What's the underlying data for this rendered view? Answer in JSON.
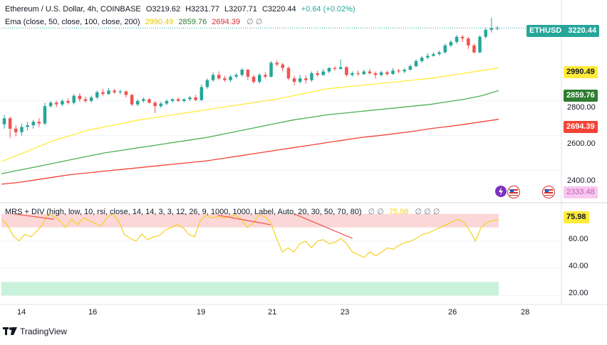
{
  "header": {
    "symbol_line": "Ethereum / U.S. Dollar, 4h, COINBASE",
    "ohlc": {
      "o": "O3219.62",
      "h": "H3231.77",
      "l": "L3207.71",
      "c": "C3220.44",
      "chg": "+0.64 (+0.02%)"
    },
    "ema_label": "Ema (close, 50, close, 100, close, 200)",
    "ema_values": [
      "2990.49",
      "2859.76",
      "2694.39"
    ],
    "ema_suffix": "∅ ∅"
  },
  "indicator": {
    "label": "MRS + DIV (high, low, 10, rsi, close, 14, 14, 3, 3, 12, 26, 9, 1000, 1000, Label, Auto, 20, 30, 50, 70, 80)",
    "prefix": "∅ ∅",
    "value": "75.98",
    "suffix": "∅ ∅ ∅",
    "current_label": "75.98",
    "axis_ticks": [
      "60.00",
      "40.00",
      "20.00"
    ]
  },
  "price_labels": {
    "ethusd_name": "ETHUSD",
    "ethusd_value": "3220.44",
    "ema50": "2990.49",
    "ema100": "2859.76",
    "ema200": "2694.39",
    "ghost": "2333.48"
  },
  "price_axis_ticks": [
    "2800.00",
    "2600.00",
    "2400.00"
  ],
  "time_axis_ticks": [
    "14",
    "16",
    "19",
    "21",
    "23",
    "26",
    "28"
  ],
  "branding": {
    "name": "TradingView"
  },
  "colors": {
    "up": "#26a69a",
    "down": "#ef5350",
    "ema50": "#ffeb3b",
    "ema100": "#4caf50",
    "ema200": "#f44336",
    "rsi": "#f5d020",
    "overbought_zone": "#fcd7d7",
    "oversold_zone": "#c9f2da",
    "ethusd_label": "#26a69a"
  },
  "chart_data": {
    "type": "candlestick",
    "timeframe": "4h",
    "x_ticks": [
      "14",
      "16",
      "19",
      "21",
      "23",
      "26",
      "28"
    ],
    "ylim": [
      2250,
      3300
    ],
    "y_ticks": [
      2400,
      2600,
      2800
    ],
    "candles": [
      {
        "o": 2665,
        "c": 2700,
        "h": 2720,
        "l": 2640
      },
      {
        "o": 2700,
        "c": 2640,
        "h": 2710,
        "l": 2585
      },
      {
        "o": 2640,
        "c": 2620,
        "h": 2660,
        "l": 2595
      },
      {
        "o": 2620,
        "c": 2650,
        "h": 2670,
        "l": 2600
      },
      {
        "o": 2650,
        "c": 2660,
        "h": 2680,
        "l": 2630
      },
      {
        "o": 2660,
        "c": 2680,
        "h": 2690,
        "l": 2640
      },
      {
        "o": 2680,
        "c": 2670,
        "h": 2700,
        "l": 2650
      },
      {
        "o": 2670,
        "c": 2770,
        "h": 2790,
        "l": 2660
      },
      {
        "o": 2770,
        "c": 2790,
        "h": 2800,
        "l": 2760
      },
      {
        "o": 2790,
        "c": 2780,
        "h": 2800,
        "l": 2765
      },
      {
        "o": 2780,
        "c": 2800,
        "h": 2810,
        "l": 2770
      },
      {
        "o": 2800,
        "c": 2790,
        "h": 2815,
        "l": 2780
      },
      {
        "o": 2790,
        "c": 2830,
        "h": 2840,
        "l": 2780
      },
      {
        "o": 2830,
        "c": 2810,
        "h": 2845,
        "l": 2795
      },
      {
        "o": 2810,
        "c": 2800,
        "h": 2825,
        "l": 2790
      },
      {
        "o": 2800,
        "c": 2820,
        "h": 2830,
        "l": 2790
      },
      {
        "o": 2820,
        "c": 2850,
        "h": 2860,
        "l": 2810
      },
      {
        "o": 2850,
        "c": 2840,
        "h": 2870,
        "l": 2830
      },
      {
        "o": 2840,
        "c": 2860,
        "h": 2875,
        "l": 2835
      },
      {
        "o": 2860,
        "c": 2850,
        "h": 2870,
        "l": 2840
      },
      {
        "o": 2850,
        "c": 2855,
        "h": 2865,
        "l": 2840
      },
      {
        "o": 2855,
        "c": 2835,
        "h": 2860,
        "l": 2820
      },
      {
        "o": 2835,
        "c": 2780,
        "h": 2840,
        "l": 2770
      },
      {
        "o": 2780,
        "c": 2800,
        "h": 2810,
        "l": 2770
      },
      {
        "o": 2800,
        "c": 2810,
        "h": 2820,
        "l": 2790
      },
      {
        "o": 2810,
        "c": 2790,
        "h": 2815,
        "l": 2785
      },
      {
        "o": 2790,
        "c": 2770,
        "h": 2800,
        "l": 2730
      },
      {
        "o": 2770,
        "c": 2785,
        "h": 2795,
        "l": 2760
      },
      {
        "o": 2785,
        "c": 2800,
        "h": 2810,
        "l": 2775
      },
      {
        "o": 2800,
        "c": 2810,
        "h": 2815,
        "l": 2790
      },
      {
        "o": 2810,
        "c": 2800,
        "h": 2820,
        "l": 2795
      },
      {
        "o": 2800,
        "c": 2810,
        "h": 2815,
        "l": 2790
      },
      {
        "o": 2810,
        "c": 2820,
        "h": 2830,
        "l": 2800
      },
      {
        "o": 2820,
        "c": 2805,
        "h": 2835,
        "l": 2800
      },
      {
        "o": 2805,
        "c": 2880,
        "h": 2895,
        "l": 2800
      },
      {
        "o": 2880,
        "c": 2920,
        "h": 2930,
        "l": 2870
      },
      {
        "o": 2920,
        "c": 2950,
        "h": 2965,
        "l": 2910
      },
      {
        "o": 2950,
        "c": 2930,
        "h": 2970,
        "l": 2920
      },
      {
        "o": 2930,
        "c": 2920,
        "h": 2945,
        "l": 2910
      },
      {
        "o": 2920,
        "c": 2940,
        "h": 2950,
        "l": 2910
      },
      {
        "o": 2940,
        "c": 2950,
        "h": 2960,
        "l": 2930
      },
      {
        "o": 2950,
        "c": 2980,
        "h": 2990,
        "l": 2940
      },
      {
        "o": 2980,
        "c": 2940,
        "h": 2985,
        "l": 2920
      },
      {
        "o": 2940,
        "c": 2910,
        "h": 2950,
        "l": 2900
      },
      {
        "o": 2910,
        "c": 2950,
        "h": 2960,
        "l": 2900
      },
      {
        "o": 2950,
        "c": 2940,
        "h": 2965,
        "l": 2930
      },
      {
        "o": 2940,
        "c": 3020,
        "h": 3030,
        "l": 2935
      },
      {
        "o": 3020,
        "c": 3010,
        "h": 3035,
        "l": 3000
      },
      {
        "o": 3010,
        "c": 2990,
        "h": 3020,
        "l": 2970
      },
      {
        "o": 2990,
        "c": 2930,
        "h": 3000,
        "l": 2920
      },
      {
        "o": 2930,
        "c": 2910,
        "h": 2945,
        "l": 2890
      },
      {
        "o": 2910,
        "c": 2930,
        "h": 2950,
        "l": 2900
      },
      {
        "o": 2930,
        "c": 2920,
        "h": 2945,
        "l": 2900
      },
      {
        "o": 2920,
        "c": 2960,
        "h": 2970,
        "l": 2910
      },
      {
        "o": 2960,
        "c": 2950,
        "h": 2975,
        "l": 2940
      },
      {
        "o": 2950,
        "c": 2970,
        "h": 2985,
        "l": 2945
      },
      {
        "o": 2970,
        "c": 2990,
        "h": 2995,
        "l": 2960
      },
      {
        "o": 2990,
        "c": 2985,
        "h": 3000,
        "l": 2975
      },
      {
        "o": 2985,
        "c": 2995,
        "h": 3040,
        "l": 2980
      },
      {
        "o": 2995,
        "c": 2950,
        "h": 3000,
        "l": 2940
      },
      {
        "o": 2950,
        "c": 2960,
        "h": 2970,
        "l": 2940
      },
      {
        "o": 2960,
        "c": 2955,
        "h": 2975,
        "l": 2945
      },
      {
        "o": 2955,
        "c": 2970,
        "h": 2980,
        "l": 2950
      },
      {
        "o": 2970,
        "c": 2960,
        "h": 2985,
        "l": 2950
      },
      {
        "o": 2960,
        "c": 2950,
        "h": 2970,
        "l": 2930
      },
      {
        "o": 2950,
        "c": 2965,
        "h": 2975,
        "l": 2940
      },
      {
        "o": 2965,
        "c": 2955,
        "h": 2975,
        "l": 2945
      },
      {
        "o": 2955,
        "c": 2975,
        "h": 2990,
        "l": 2950
      },
      {
        "o": 2975,
        "c": 2970,
        "h": 2985,
        "l": 2960
      },
      {
        "o": 2970,
        "c": 2980,
        "h": 2990,
        "l": 2960
      },
      {
        "o": 2980,
        "c": 3000,
        "h": 3010,
        "l": 2975
      },
      {
        "o": 3000,
        "c": 3030,
        "h": 3040,
        "l": 2995
      },
      {
        "o": 3030,
        "c": 3050,
        "h": 3060,
        "l": 3020
      },
      {
        "o": 3050,
        "c": 3060,
        "h": 3075,
        "l": 3040
      },
      {
        "o": 3060,
        "c": 3070,
        "h": 3080,
        "l": 3055
      },
      {
        "o": 3070,
        "c": 3080,
        "h": 3090,
        "l": 3060
      },
      {
        "o": 3080,
        "c": 3120,
        "h": 3130,
        "l": 3075
      },
      {
        "o": 3120,
        "c": 3140,
        "h": 3150,
        "l": 3110
      },
      {
        "o": 3140,
        "c": 3170,
        "h": 3180,
        "l": 3130
      },
      {
        "o": 3170,
        "c": 3160,
        "h": 3180,
        "l": 3140
      },
      {
        "o": 3160,
        "c": 3120,
        "h": 3170,
        "l": 3100
      },
      {
        "o": 3120,
        "c": 3080,
        "h": 3130,
        "l": 3075
      },
      {
        "o": 3080,
        "c": 3170,
        "h": 3180,
        "l": 3075
      },
      {
        "o": 3170,
        "c": 3210,
        "h": 3220,
        "l": 3160
      },
      {
        "o": 3210,
        "c": 3220,
        "h": 3280,
        "l": 3195
      },
      {
        "o": 3219.62,
        "c": 3220.44,
        "h": 3231.77,
        "l": 3207.71
      }
    ],
    "ema": [
      {
        "name": "Ema 50",
        "last": 2990.49,
        "values": [
          2450,
          2490,
          2530,
          2570,
          2600,
          2630,
          2650,
          2670,
          2690,
          2705,
          2720,
          2735,
          2750,
          2765,
          2780,
          2795,
          2810,
          2830,
          2850,
          2870,
          2880,
          2890,
          2900,
          2910,
          2920,
          2930,
          2945,
          2960,
          2975,
          2990
        ]
      },
      {
        "name": "Ema 100",
        "last": 2859.76,
        "values": [
          2380,
          2400,
          2420,
          2440,
          2460,
          2480,
          2500,
          2515,
          2530,
          2545,
          2560,
          2575,
          2590,
          2610,
          2630,
          2650,
          2670,
          2690,
          2705,
          2720,
          2730,
          2740,
          2750,
          2760,
          2770,
          2780,
          2795,
          2810,
          2830,
          2860
        ]
      },
      {
        "name": "Ema 200",
        "last": 2694.39,
        "values": [
          2320,
          2330,
          2345,
          2360,
          2375,
          2385,
          2395,
          2405,
          2415,
          2425,
          2435,
          2445,
          2455,
          2470,
          2485,
          2500,
          2515,
          2530,
          2545,
          2560,
          2575,
          2590,
          2600,
          2612,
          2625,
          2640,
          2652,
          2665,
          2680,
          2694
        ]
      }
    ],
    "rsi": {
      "ylim": [
        15,
        85
      ],
      "y_ticks": [
        60,
        40,
        20
      ],
      "overbought_band": [
        70,
        80
      ],
      "oversold_band": [
        20,
        30
      ],
      "last": 75.98,
      "values": [
        76,
        72,
        64,
        60,
        65,
        63,
        67,
        72,
        80,
        78,
        75,
        70,
        76,
        72,
        77,
        75,
        73,
        71,
        77,
        80,
        75,
        65,
        62,
        60,
        65,
        61,
        63,
        64,
        68,
        70,
        72,
        70,
        65,
        63,
        75,
        79,
        77,
        78,
        77,
        78,
        79,
        76,
        70,
        73,
        79,
        78,
        74,
        62,
        52,
        55,
        52,
        58,
        60,
        55,
        60,
        61,
        58,
        59,
        62,
        58,
        52,
        50,
        48,
        52,
        49,
        52,
        55,
        54,
        57,
        59,
        60,
        62,
        65,
        66,
        68,
        70,
        72,
        74,
        76,
        74,
        68,
        60,
        70,
        74,
        75,
        76
      ]
    },
    "divergences": [
      {
        "from": [
          2,
          80
        ],
        "to": [
          9,
          76
        ]
      },
      {
        "from": [
          37,
          79
        ],
        "to": [
          46,
          72
        ]
      },
      {
        "from": [
          50,
          80
        ],
        "to": [
          60,
          62
        ]
      }
    ]
  }
}
